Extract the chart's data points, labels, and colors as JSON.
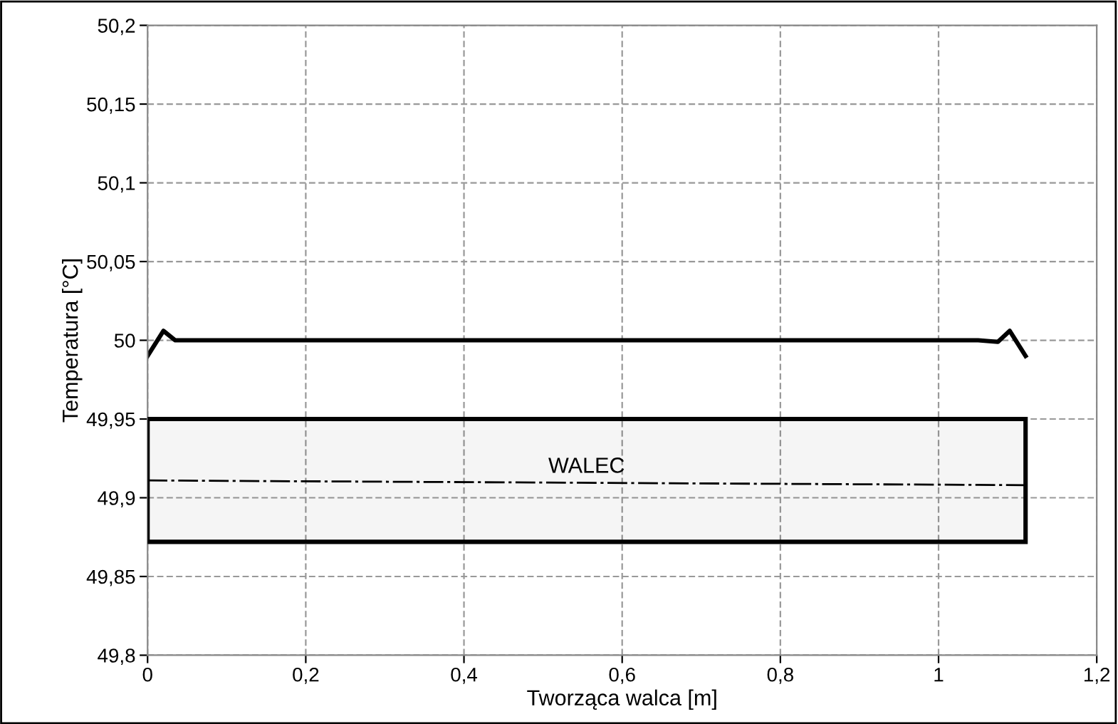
{
  "chart_data": {
    "type": "line",
    "xlabel": "Tworząca walca [m]",
    "ylabel": "Temperatura [°C]",
    "xlim": [
      0,
      1.2
    ],
    "xticks": [
      {
        "value": 0,
        "label": "0"
      },
      {
        "value": 0.2,
        "label": "0,2"
      },
      {
        "value": 0.4,
        "label": "0,4"
      },
      {
        "value": 0.6,
        "label": "0,6"
      },
      {
        "value": 0.8,
        "label": "0,8"
      },
      {
        "value": 1,
        "label": "1"
      },
      {
        "value": 1.2,
        "label": "1,2"
      }
    ],
    "ylim": [
      49.8,
      50.2
    ],
    "yticks": [
      {
        "value": 49.8,
        "label": "49,8"
      },
      {
        "value": 49.85,
        "label": "49,85"
      },
      {
        "value": 49.9,
        "label": "49,9"
      },
      {
        "value": 49.95,
        "label": "49,95"
      },
      {
        "value": 50,
        "label": "50"
      },
      {
        "value": 50.05,
        "label": "50,05"
      },
      {
        "value": 50.1,
        "label": "50,1"
      },
      {
        "value": 50.15,
        "label": "50,15"
      },
      {
        "value": 50.2,
        "label": "50,2"
      }
    ],
    "grid": true,
    "legend": false,
    "series": [
      {
        "color": "#000000",
        "line_style": "solid",
        "x": [
          0,
          0.02,
          0.035,
          0.06,
          0.5,
          1.05,
          1.075,
          1.09,
          1.11
        ],
        "values": [
          49.99,
          50.006,
          50.0,
          50.0,
          50.0,
          50.0,
          49.999,
          50.006,
          49.99
        ]
      },
      {
        "color": "#000000",
        "line_style": "dashed",
        "x": [
          0,
          1.11
        ],
        "values": [
          49.911,
          49.908
        ]
      }
    ],
    "bands": [
      {
        "axis": "y",
        "from": 49.872,
        "to": 49.95,
        "label": "WALEC",
        "color": "#000000"
      }
    ]
  }
}
